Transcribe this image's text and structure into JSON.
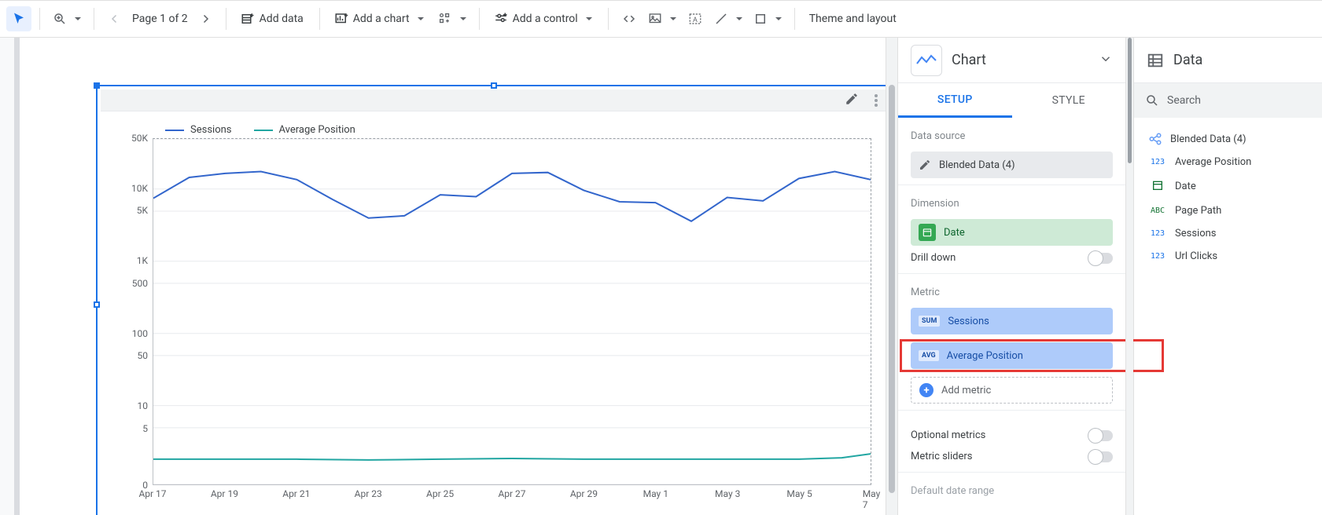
{
  "toolbar": {
    "page_label": "Page 1 of 2",
    "add_data": "Add data",
    "add_chart": "Add a chart",
    "add_control": "Add a control",
    "theme": "Theme and layout"
  },
  "chart": {
    "legend": {
      "s1": {
        "label": "Sessions",
        "color": "#3366cc"
      },
      "s2": {
        "label": "Average Position",
        "color": "#22a6a2"
      }
    },
    "y_ticks": [
      "50K",
      "10K",
      "5K",
      "1K",
      "500",
      "100",
      "50",
      "10",
      "5",
      "0"
    ],
    "y_tick_pos": [
      0,
      14.5,
      20.9,
      35.4,
      41.8,
      56.3,
      62.7,
      77.2,
      83.6,
      100
    ],
    "x_ticks": [
      "Apr 17",
      "Apr 19",
      "Apr 21",
      "Apr 23",
      "Apr 25",
      "Apr 27",
      "Apr 29",
      "May 1",
      "May 3",
      "May 5",
      "May 7"
    ],
    "series": {
      "sessions": {
        "color": "#3366cc",
        "points": [
          [
            0,
            7800
          ],
          [
            5,
            15000
          ],
          [
            10,
            17000
          ],
          [
            15,
            18000
          ],
          [
            20,
            14000
          ],
          [
            25,
            7500
          ],
          [
            30,
            4200
          ],
          [
            35,
            4500
          ],
          [
            40,
            8700
          ],
          [
            45,
            8200
          ],
          [
            50,
            17000
          ],
          [
            55,
            17500
          ],
          [
            60,
            10000
          ],
          [
            65,
            7000
          ],
          [
            70,
            6800
          ],
          [
            75,
            3800
          ],
          [
            80,
            8000
          ],
          [
            85,
            7200
          ],
          [
            90,
            14500
          ],
          [
            95,
            18000
          ],
          [
            100,
            14000
          ]
        ]
      },
      "avg_position": {
        "color": "#22a6a2",
        "points": [
          [
            0,
            2.2
          ],
          [
            10,
            2.2
          ],
          [
            20,
            2.2
          ],
          [
            30,
            2.15
          ],
          [
            40,
            2.2
          ],
          [
            50,
            2.25
          ],
          [
            60,
            2.2
          ],
          [
            70,
            2.2
          ],
          [
            80,
            2.2
          ],
          [
            90,
            2.2
          ],
          [
            96,
            2.3
          ],
          [
            100,
            2.6
          ]
        ]
      }
    },
    "y_scale": {
      "type": "log",
      "min": 1,
      "max": 50000
    }
  },
  "config": {
    "title": "Chart",
    "tabs": {
      "setup": "SETUP",
      "style": "STYLE"
    },
    "data_source_label": "Data source",
    "data_source_value": "Blended Data (4)",
    "dimension_label": "Dimension",
    "dimension_value": "Date",
    "drill_down": "Drill down",
    "metric_label": "Metric",
    "metrics": {
      "m1": {
        "agg": "SUM",
        "label": "Sessions"
      },
      "m2": {
        "agg": "AVG",
        "label": "Average Position"
      }
    },
    "add_metric": "Add metric",
    "optional_metrics": "Optional metrics",
    "metric_sliders": "Metric sliders",
    "default_date_range": "Default date range"
  },
  "data_panel": {
    "title": "Data",
    "search": "Search",
    "source": "Blended Data (4)",
    "fields": {
      "f1": {
        "type": "123",
        "type_class": "num",
        "label": "Average Position"
      },
      "f2": {
        "type": "cal",
        "type_class": "date",
        "label": "Date"
      },
      "f3": {
        "type": "ABC",
        "type_class": "txt",
        "label": "Page Path"
      },
      "f4": {
        "type": "123",
        "type_class": "num",
        "label": "Sessions"
      },
      "f5": {
        "type": "123",
        "type_class": "num",
        "label": "Url Clicks"
      }
    }
  }
}
